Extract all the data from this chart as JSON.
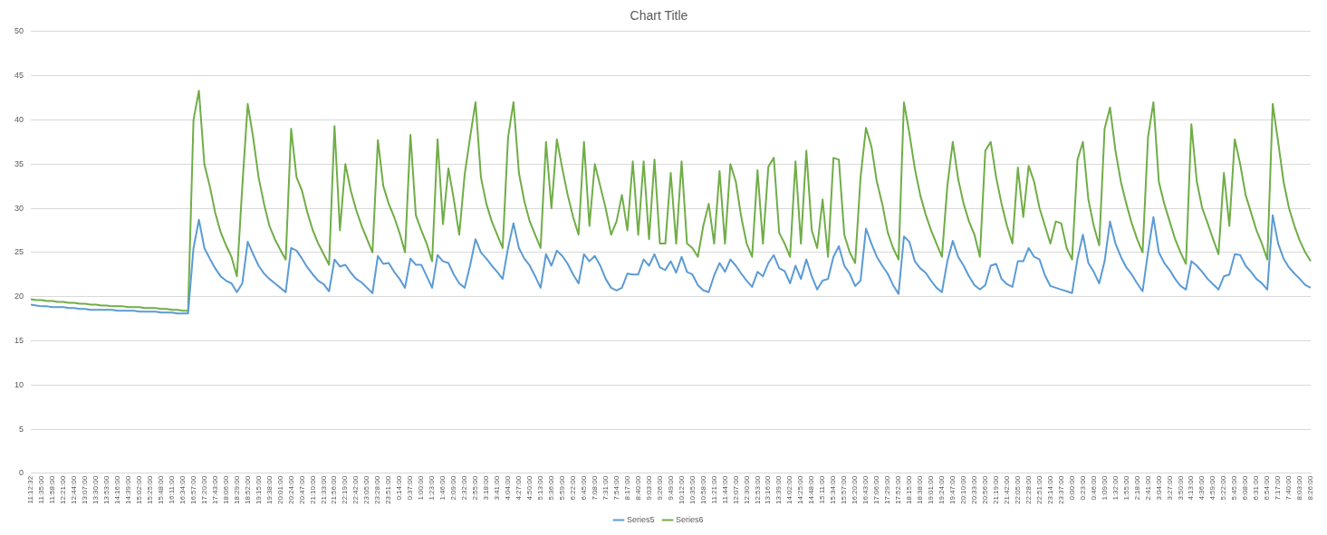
{
  "chart_data": {
    "type": "line",
    "title": "Chart Title",
    "categories": [
      "11:12:32",
      null,
      "11:35:00",
      null,
      "11:58:00",
      null,
      "12:21:00",
      null,
      "12:44:00",
      null,
      "13:07:00",
      null,
      "13:30:00",
      null,
      "13:53:00",
      null,
      "14:16:00",
      null,
      "14:39:00",
      null,
      "15:02:00",
      null,
      "15:25:00",
      null,
      "15:48:00",
      null,
      "16:11:00",
      null,
      "16:34:00",
      null,
      "16:57:00",
      null,
      "17:20:00",
      null,
      "17:43:00",
      null,
      "18:06:00",
      null,
      "18:29:00",
      null,
      "18:52:00",
      null,
      "19:15:00",
      null,
      "19:38:00",
      null,
      "20:01:00",
      null,
      "20:24:00",
      null,
      "20:47:00",
      null,
      "21:10:00",
      null,
      "21:33:00",
      null,
      "21:56:00",
      null,
      "22:19:00",
      null,
      "22:42:00",
      null,
      "23:05:00",
      null,
      "23:28:00",
      null,
      "23:51:00",
      null,
      "0:14:00",
      null,
      "0:37:00",
      null,
      "1:00:00",
      null,
      "1:23:00",
      null,
      "1:46:00",
      null,
      "2:09:00",
      null,
      "2:32:00",
      null,
      "2:55:00",
      null,
      "3:18:00",
      null,
      "3:41:00",
      null,
      "4:04:00",
      null,
      "4:27:00",
      null,
      "4:50:00",
      null,
      "5:13:00",
      null,
      "5:36:00",
      null,
      "5:59:00",
      null,
      "6:22:00",
      null,
      "6:45:00",
      null,
      "7:08:00",
      null,
      "7:31:00",
      null,
      "7:54:00",
      null,
      "8:17:00",
      null,
      "8:40:00",
      null,
      "9:03:00",
      null,
      "9:26:00",
      null,
      "9:49:00",
      null,
      "10:12:00",
      null,
      "10:35:00",
      null,
      "10:58:00",
      null,
      "11:21:00",
      null,
      "11:44:00",
      null,
      "12:07:00",
      null,
      "12:30:00",
      null,
      "12:53:00",
      null,
      "13:16:00",
      null,
      "13:39:00",
      null,
      "14:02:00",
      null,
      "14:25:00",
      null,
      "14:48:00",
      null,
      "15:11:00",
      null,
      "15:34:00",
      null,
      "15:57:00",
      null,
      "16:20:00",
      null,
      "16:43:00",
      null,
      "17:06:00",
      null,
      "17:29:00",
      null,
      "17:52:00",
      null,
      "18:15:00",
      null,
      "18:38:00",
      null,
      "19:01:00",
      null,
      "19:24:00",
      null,
      "19:47:00",
      null,
      "20:10:00",
      null,
      "20:33:00",
      null,
      "20:56:00",
      null,
      "21:19:00",
      null,
      "21:42:00",
      null,
      "22:05:00",
      null,
      "22:28:00",
      null,
      "22:51:00",
      null,
      "23:14:00",
      null,
      "23:37:00",
      null,
      "0:00:00",
      null,
      "0:23:00",
      null,
      "0:46:00",
      null,
      "1:09:00",
      null,
      "1:32:00",
      null,
      "1:55:00",
      null,
      "2:18:00",
      null,
      "2:41:00",
      null,
      "3:04:00",
      null,
      "3:27:00",
      null,
      "3:50:00",
      null,
      "4:13:00",
      null,
      "4:36:00",
      null,
      "4:59:00",
      null,
      "5:22:00",
      null,
      "5:45:00",
      null,
      "6:08:00",
      null,
      "6:31:00",
      null,
      "6:54:00",
      null,
      "7:17:00",
      null,
      "7:40:00",
      null,
      "8:03:00",
      null,
      "8:26:00"
    ],
    "series": [
      {
        "name": "Series5",
        "color": "#5b9bd5",
        "values": [
          19.1,
          19.0,
          18.9,
          18.9,
          18.8,
          18.8,
          18.8,
          18.7,
          18.7,
          18.6,
          18.6,
          18.5,
          18.5,
          18.5,
          18.5,
          18.5,
          18.4,
          18.4,
          18.4,
          18.4,
          18.3,
          18.3,
          18.3,
          18.3,
          18.2,
          18.2,
          18.2,
          18.1,
          18.1,
          18.1,
          25.5,
          28.7,
          25.5,
          24.3,
          23.2,
          22.3,
          21.8,
          21.5,
          20.5,
          21.5,
          26.2,
          24.8,
          23.5,
          22.6,
          22,
          21.5,
          21,
          20.5,
          25.5,
          25.2,
          24.3,
          23.3,
          22.5,
          21.8,
          21.4,
          20.6,
          24.2,
          23.4,
          23.6,
          22.7,
          22,
          21.6,
          21,
          20.4,
          24.6,
          23.7,
          23.8,
          22.8,
          22,
          21,
          24.3,
          23.6,
          23.6,
          22.3,
          21,
          24.7,
          24,
          23.8,
          22.5,
          21.5,
          21,
          23.5,
          26.5,
          25,
          24.3,
          23.5,
          22.8,
          22,
          25.5,
          28.3,
          25.5,
          24.3,
          23.5,
          22.3,
          21,
          24.8,
          23.5,
          25.2,
          24.6,
          23.7,
          22.5,
          21.5,
          24.8,
          24,
          24.6,
          23.5,
          22,
          21,
          20.7,
          21,
          22.6,
          22.5,
          22.5,
          24.2,
          23.5,
          24.8,
          23.3,
          23,
          24,
          22.7,
          24.5,
          22.8,
          22.5,
          21.3,
          20.7,
          20.5,
          22.4,
          23.8,
          22.8,
          24.2,
          23.5,
          22.6,
          21.8,
          21.1,
          22.8,
          22.3,
          23.8,
          24.7,
          23.2,
          22.9,
          21.5,
          23.5,
          22,
          24.2,
          22.3,
          20.8,
          21.8,
          22,
          24.5,
          25.7,
          23.5,
          22.6,
          21.2,
          21.8,
          27.7,
          26,
          24.5,
          23.5,
          22.6,
          21.3,
          20.3,
          26.8,
          26.2,
          24,
          23.2,
          22.7,
          21.8,
          21,
          20.5,
          24,
          26.3,
          24.5,
          23.5,
          22.3,
          21.3,
          20.8,
          21.3,
          23.5,
          23.7,
          22,
          21.4,
          21.1,
          24,
          24,
          25.5,
          24.5,
          24.2,
          22.4,
          21.2,
          21,
          20.8,
          20.6,
          20.4,
          24.3,
          27,
          23.8,
          22.8,
          21.5,
          24,
          28.5,
          26,
          24.5,
          23.3,
          22.5,
          21.5,
          20.6,
          25,
          29,
          25,
          23.8,
          23,
          22,
          21.2,
          20.8,
          24,
          23.5,
          22.8,
          22,
          21.4,
          20.8,
          22.3,
          22.5,
          24.8,
          24.7,
          23.5,
          22.8,
          22,
          21.5,
          20.8,
          29.2,
          26,
          24.3,
          23.3,
          22.6,
          22,
          21.3,
          21
        ]
      },
      {
        "name": "Series6",
        "color": "#70ad47",
        "values": [
          19.7,
          19.6,
          19.6,
          19.5,
          19.5,
          19.4,
          19.4,
          19.3,
          19.3,
          19.2,
          19.2,
          19.1,
          19.1,
          19.0,
          19.0,
          18.9,
          18.9,
          18.9,
          18.8,
          18.8,
          18.8,
          18.7,
          18.7,
          18.7,
          18.6,
          18.6,
          18.5,
          18.5,
          18.4,
          18.4,
          40,
          43.3,
          35,
          32.5,
          29.5,
          27.3,
          25.8,
          24.5,
          22.3,
          32.5,
          41.8,
          38,
          33.5,
          30.5,
          28,
          26.5,
          25.3,
          24.2,
          39,
          33.5,
          32,
          29.5,
          27.5,
          26,
          24.8,
          23.6,
          39.3,
          27.5,
          35,
          32,
          29.8,
          28,
          26.5,
          25,
          37.7,
          32.5,
          30.5,
          29,
          27.2,
          25,
          38.3,
          29.2,
          27.5,
          26,
          24,
          37.8,
          28.2,
          34.5,
          31,
          27,
          33.8,
          38,
          42,
          33.5,
          30.5,
          28.5,
          27,
          25.5,
          38,
          42,
          34,
          30.8,
          28.5,
          27,
          25.5,
          37.5,
          30,
          37.8,
          34.5,
          31.5,
          29,
          27,
          37.5,
          28,
          35,
          32.5,
          30,
          27,
          28.5,
          31.5,
          27.5,
          35.3,
          27,
          35.3,
          26.5,
          35.5,
          26,
          26,
          34,
          26,
          35.3,
          26,
          25.5,
          24.5,
          28,
          30.5,
          26,
          34.2,
          26,
          35,
          33,
          29,
          26,
          24.5,
          34.3,
          26,
          34.7,
          35.7,
          27.2,
          26,
          24.5,
          35.3,
          26,
          36.5,
          27.5,
          25.5,
          31,
          24.5,
          35.7,
          35.5,
          27,
          25,
          23.8,
          33.5,
          39.1,
          37,
          33,
          30.5,
          27.3,
          25.5,
          24.2,
          42,
          38.5,
          34.5,
          31.5,
          29.3,
          27.5,
          26,
          24.5,
          32.5,
          37.5,
          33.3,
          30.5,
          28.5,
          27,
          24.5,
          36.5,
          37.5,
          33.5,
          30.5,
          28,
          26,
          34.6,
          29,
          34.8,
          33,
          30,
          28,
          26,
          28.5,
          28.3,
          25.5,
          24.2,
          35.5,
          37.5,
          31,
          28,
          25.8,
          39,
          41.4,
          36.5,
          33,
          30.5,
          28.3,
          26.5,
          25,
          38,
          42,
          33,
          30.5,
          28.5,
          26.5,
          25,
          23.7,
          39.5,
          33,
          30,
          28.3,
          26.5,
          24.8,
          34,
          28,
          37.8,
          35,
          31.5,
          29.5,
          27.5,
          26,
          24.2,
          41.8,
          37.5,
          33,
          30,
          28,
          26.3,
          25,
          24
        ]
      }
    ],
    "ylim": [
      0,
      50
    ],
    "yticks": [
      0,
      5,
      10,
      15,
      20,
      25,
      30,
      35,
      40,
      45,
      50
    ],
    "grid": "y",
    "legend": "bottom"
  }
}
